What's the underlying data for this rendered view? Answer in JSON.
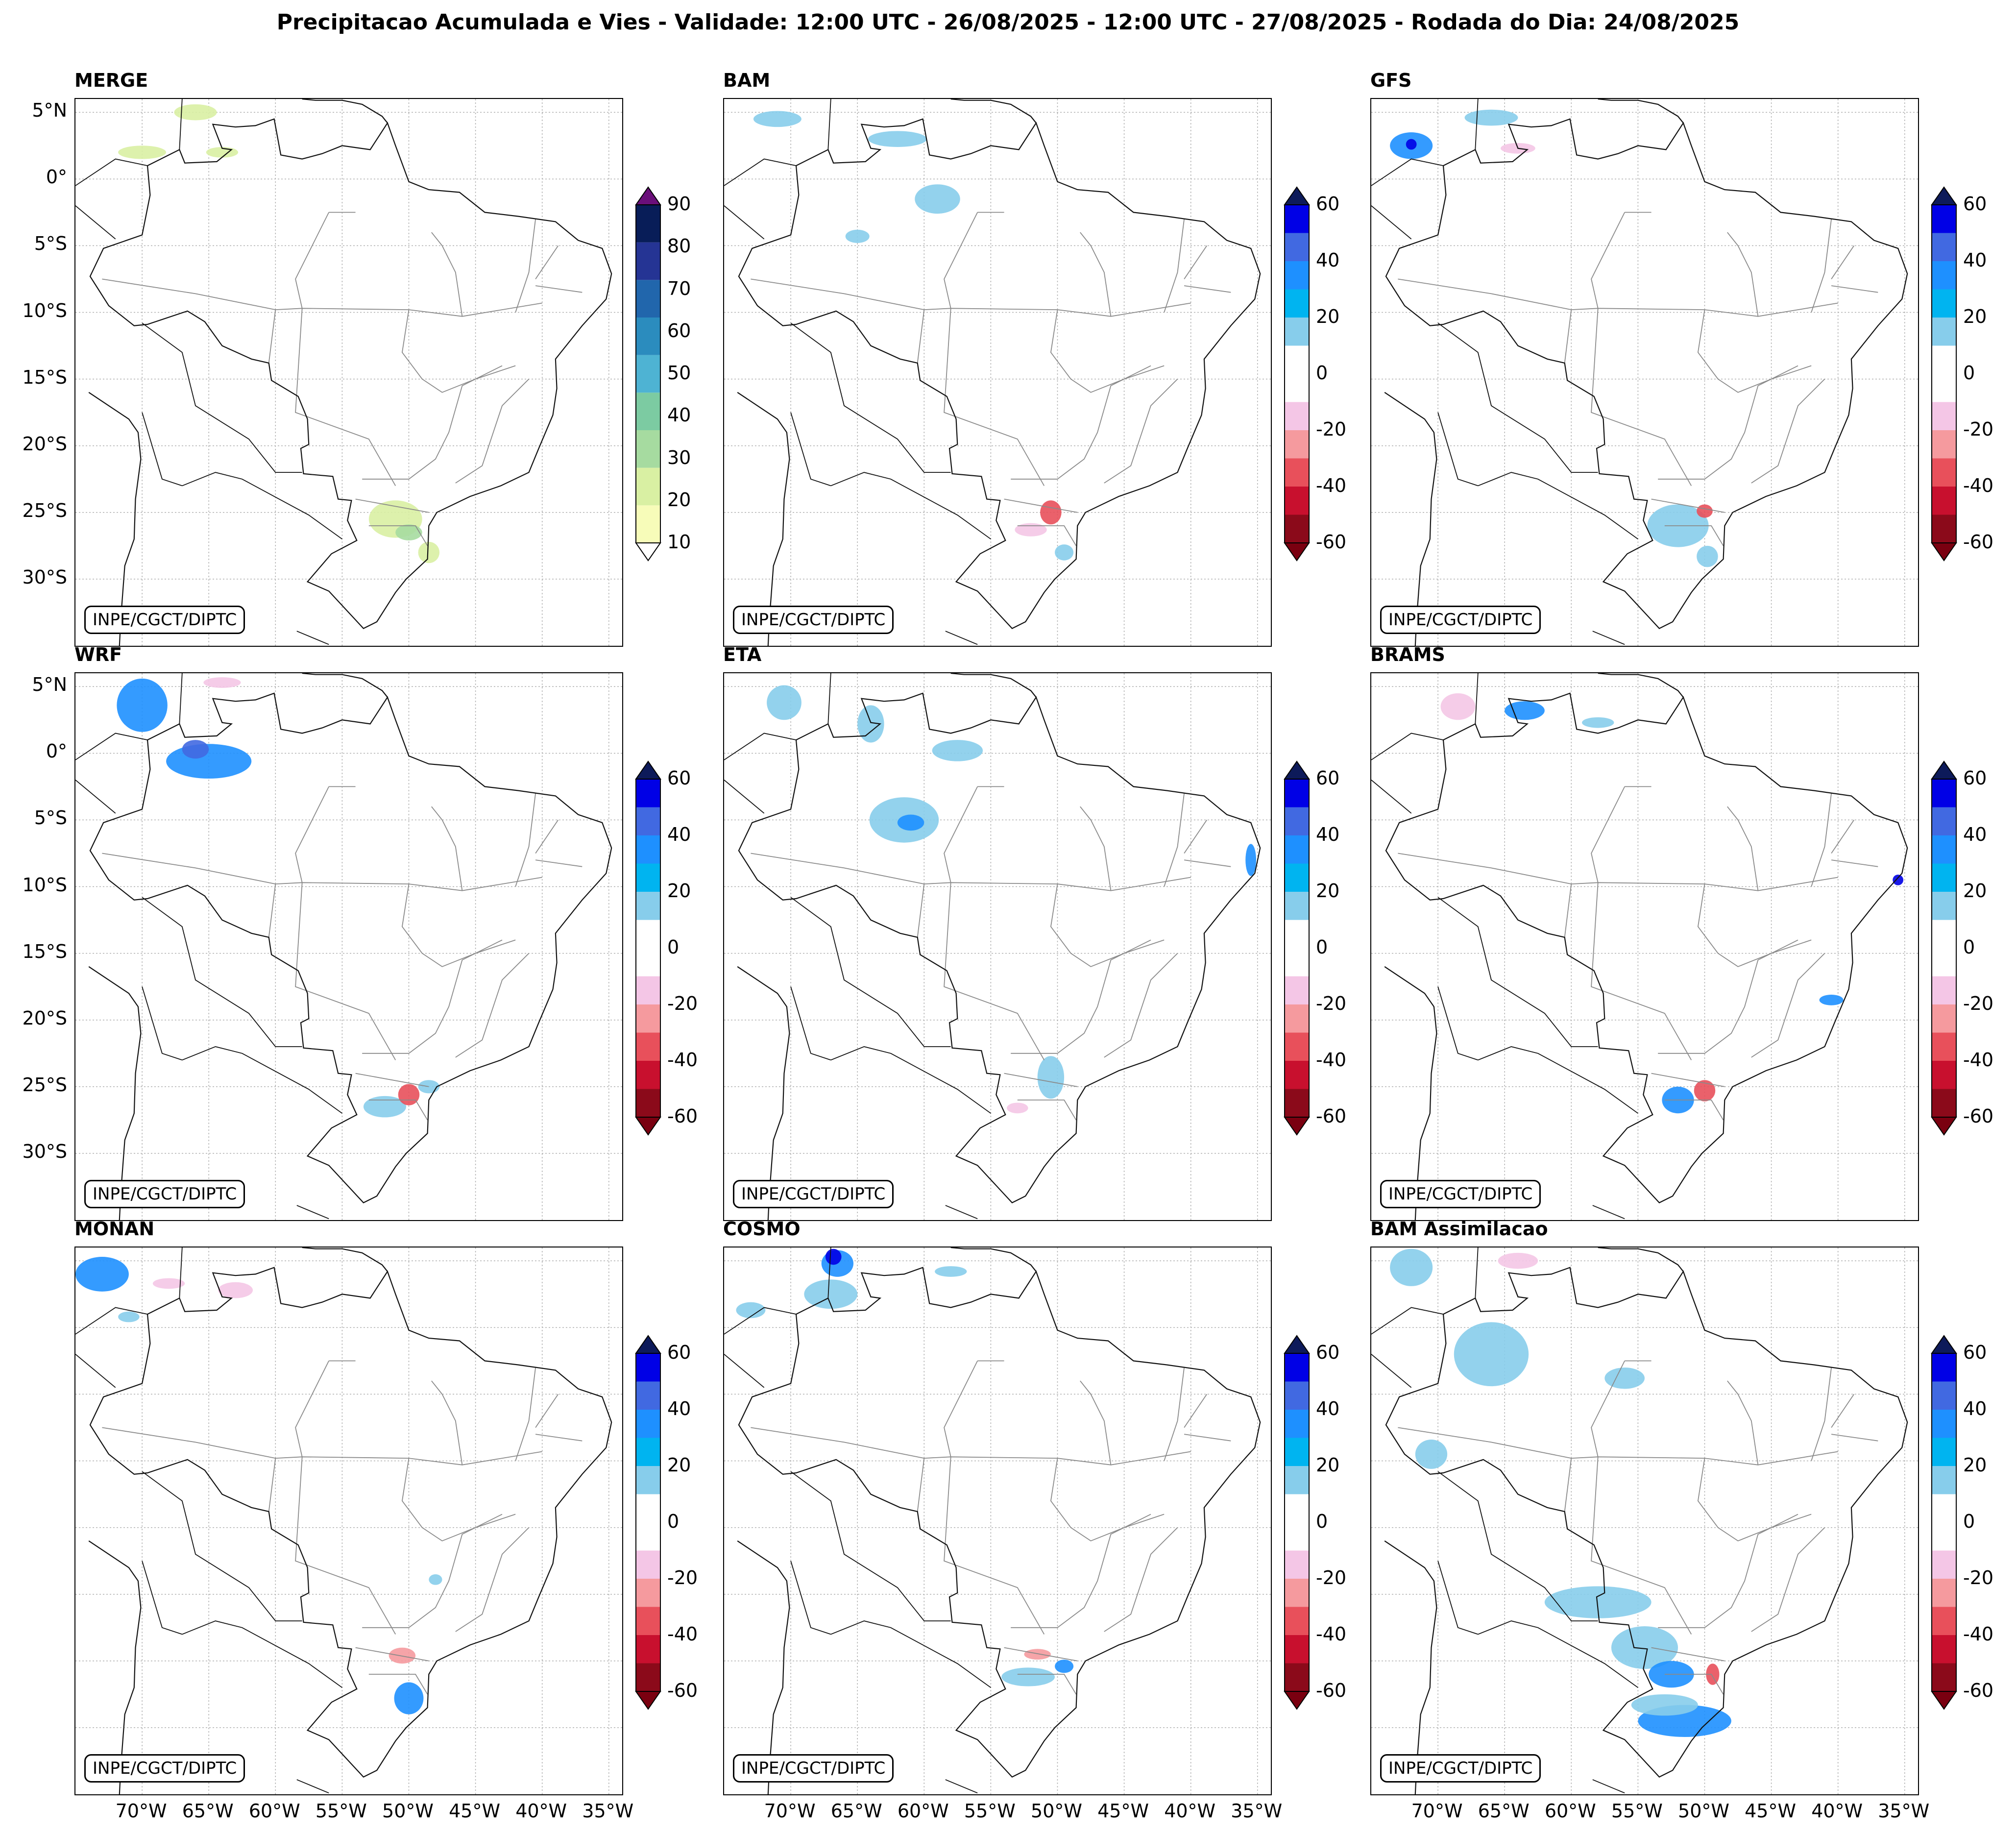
{
  "figure": {
    "title": "Precipitacao Acumulada e Vies - Validade: 12:00 UTC - 26/08/2025 - 12:00 UTC - 27/08/2025 - Rodada do Dia: 24/08/2025",
    "credit": "INPE/CGCT/DIPTC"
  },
  "axes": {
    "lat_labels": [
      "5°N",
      "0°",
      "5°S",
      "10°S",
      "15°S",
      "20°S",
      "25°S",
      "30°S"
    ],
    "lat_values": [
      5,
      0,
      -5,
      -10,
      -15,
      -20,
      -25,
      -30
    ],
    "lon_labels": [
      "70°W",
      "65°W",
      "60°W",
      "55°W",
      "50°W",
      "45°W",
      "40°W",
      "35°W"
    ],
    "lon_values": [
      -70,
      -65,
      -60,
      -55,
      -50,
      -45,
      -40,
      -35
    ],
    "lon_range": [
      -75,
      -34
    ],
    "lat_range": [
      -35,
      6
    ]
  },
  "colorbars": {
    "precip": {
      "ticks": [
        "90",
        "80",
        "70",
        "60",
        "50",
        "40",
        "30",
        "20",
        "10"
      ],
      "colors": [
        "#f7fcb9",
        "#d9f0a3",
        "#a6dba0",
        "#7ccba2",
        "#4eb3d3",
        "#2b8cbe",
        "#2166ac",
        "#253494",
        "#081d58"
      ],
      "over": "#6a0f7a",
      "under": "#ffffff"
    },
    "bias": {
      "ticks": [
        "60",
        "40",
        "20",
        "0",
        "-20",
        "-40",
        "-60"
      ],
      "colors": [
        "#8b0a1a",
        "#c8102e",
        "#e8505b",
        "#f59a9e",
        "#f4c6e6",
        "#ffffff",
        "#ffffff",
        "#87cdeb",
        "#00b4f0",
        "#1e90ff",
        "#4169e1",
        "#0000e6"
      ],
      "over": "#0d1a5a",
      "under": "#7a0010"
    }
  },
  "panels": [
    {
      "title": "MERGE",
      "type": "precip"
    },
    {
      "title": "BAM",
      "type": "bias"
    },
    {
      "title": "GFS",
      "type": "bias"
    },
    {
      "title": "WRF",
      "type": "bias"
    },
    {
      "title": "ETA",
      "type": "bias"
    },
    {
      "title": "BRAMS",
      "type": "bias"
    },
    {
      "title": "MONAN",
      "type": "bias"
    },
    {
      "title": "COSMO",
      "type": "bias"
    },
    {
      "title": "BAM Assimilacao",
      "type": "bias"
    }
  ]
}
